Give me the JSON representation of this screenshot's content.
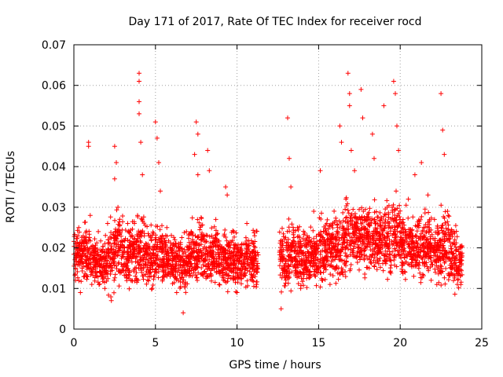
{
  "chart_data": {
    "type": "scatter",
    "title": "Day 171 of 2017, Rate Of TEC Index for receiver rocd",
    "xlabel": "GPS time / hours",
    "ylabel": "ROTI / TECUs",
    "xlim": [
      0,
      25
    ],
    "ylim": [
      0,
      0.07
    ],
    "x_ticks": [
      "0",
      "5",
      "10",
      "15",
      "20",
      "25"
    ],
    "y_ticks": [
      "0",
      "0.01",
      "0.02",
      "0.03",
      "0.04",
      "0.05",
      "0.06",
      "0.07"
    ],
    "grid": true,
    "marker": "+",
    "color": "#ff0000",
    "data_gap_hours": [
      11.3,
      12.6
    ],
    "series": [
      {
        "points": [
          [
            0.1,
            0.012
          ],
          [
            0.2,
            0.018
          ],
          [
            0.3,
            0.025
          ],
          [
            0.4,
            0.009
          ],
          [
            0.5,
            0.015
          ],
          [
            0.6,
            0.021
          ],
          [
            0.8,
            0.013
          ],
          [
            0.9,
            0.046
          ],
          [
            0.9,
            0.045
          ],
          [
            1.0,
            0.028
          ],
          [
            1.1,
            0.011
          ],
          [
            1.3,
            0.019
          ],
          [
            1.5,
            0.024
          ],
          [
            1.7,
            0.016
          ],
          [
            1.9,
            0.01
          ],
          [
            2.1,
            0.022
          ],
          [
            2.3,
            0.007
          ],
          [
            2.5,
            0.037
          ],
          [
            2.5,
            0.045
          ],
          [
            2.6,
            0.041
          ],
          [
            2.7,
            0.03
          ],
          [
            2.9,
            0.014
          ],
          [
            3.1,
            0.02
          ],
          [
            3.3,
            0.026
          ],
          [
            3.5,
            0.012
          ],
          [
            3.7,
            0.018
          ],
          [
            3.9,
            0.028
          ],
          [
            4.0,
            0.063
          ],
          [
            4.0,
            0.061
          ],
          [
            4.0,
            0.056
          ],
          [
            4.0,
            0.053
          ],
          [
            4.1,
            0.046
          ],
          [
            4.2,
            0.038
          ],
          [
            4.4,
            0.016
          ],
          [
            4.6,
            0.023
          ],
          [
            4.8,
            0.01
          ],
          [
            5.0,
            0.051
          ],
          [
            5.1,
            0.047
          ],
          [
            5.2,
            0.041
          ],
          [
            5.3,
            0.034
          ],
          [
            5.5,
            0.019
          ],
          [
            5.7,
            0.025
          ],
          [
            5.9,
            0.013
          ],
          [
            6.1,
            0.021
          ],
          [
            6.3,
            0.009
          ],
          [
            6.5,
            0.017
          ],
          [
            6.7,
            0.004
          ],
          [
            6.9,
            0.024
          ],
          [
            7.1,
            0.015
          ],
          [
            7.4,
            0.043
          ],
          [
            7.5,
            0.051
          ],
          [
            7.6,
            0.048
          ],
          [
            7.6,
            0.038
          ],
          [
            7.8,
            0.022
          ],
          [
            8.0,
            0.014
          ],
          [
            8.2,
            0.044
          ],
          [
            8.3,
            0.039
          ],
          [
            8.5,
            0.018
          ],
          [
            8.7,
            0.027
          ],
          [
            8.9,
            0.011
          ],
          [
            9.1,
            0.02
          ],
          [
            9.3,
            0.035
          ],
          [
            9.4,
            0.033
          ],
          [
            9.6,
            0.016
          ],
          [
            9.8,
            0.024
          ],
          [
            10.0,
            0.009
          ],
          [
            10.2,
            0.019
          ],
          [
            10.4,
            0.013
          ],
          [
            10.6,
            0.026
          ],
          [
            10.8,
            0.015
          ],
          [
            11.0,
            0.021
          ],
          [
            11.2,
            0.011
          ],
          [
            12.7,
            0.005
          ],
          [
            12.9,
            0.014
          ],
          [
            13.1,
            0.052
          ],
          [
            13.2,
            0.042
          ],
          [
            13.3,
            0.035
          ],
          [
            13.5,
            0.019
          ],
          [
            13.7,
            0.025
          ],
          [
            13.9,
            0.01
          ],
          [
            14.1,
            0.017
          ],
          [
            14.3,
            0.023
          ],
          [
            14.5,
            0.013
          ],
          [
            14.7,
            0.029
          ],
          [
            14.9,
            0.02
          ],
          [
            15.1,
            0.039
          ],
          [
            15.3,
            0.014
          ],
          [
            15.5,
            0.026
          ],
          [
            15.7,
            0.011
          ],
          [
            15.9,
            0.018
          ],
          [
            16.1,
            0.024
          ],
          [
            16.3,
            0.05
          ],
          [
            16.4,
            0.046
          ],
          [
            16.6,
            0.016
          ],
          [
            16.8,
            0.063
          ],
          [
            16.9,
            0.058
          ],
          [
            16.9,
            0.055
          ],
          [
            17.0,
            0.044
          ],
          [
            17.2,
            0.039
          ],
          [
            17.4,
            0.02
          ],
          [
            17.6,
            0.059
          ],
          [
            17.7,
            0.052
          ],
          [
            17.9,
            0.027
          ],
          [
            18.1,
            0.015
          ],
          [
            18.3,
            0.048
          ],
          [
            18.4,
            0.042
          ],
          [
            18.6,
            0.024
          ],
          [
            18.8,
            0.019
          ],
          [
            19.0,
            0.055
          ],
          [
            19.2,
            0.03
          ],
          [
            19.4,
            0.017
          ],
          [
            19.6,
            0.061
          ],
          [
            19.7,
            0.058
          ],
          [
            19.8,
            0.05
          ],
          [
            19.9,
            0.044
          ],
          [
            20.1,
            0.026
          ],
          [
            20.3,
            0.014
          ],
          [
            20.5,
            0.032
          ],
          [
            20.7,
            0.021
          ],
          [
            20.9,
            0.038
          ],
          [
            21.1,
            0.016
          ],
          [
            21.3,
            0.041
          ],
          [
            21.5,
            0.023
          ],
          [
            21.7,
            0.033
          ],
          [
            21.9,
            0.012
          ],
          [
            22.1,
            0.027
          ],
          [
            22.3,
            0.018
          ],
          [
            22.5,
            0.058
          ],
          [
            22.6,
            0.049
          ],
          [
            22.7,
            0.043
          ],
          [
            22.9,
            0.029
          ],
          [
            23.1,
            0.015
          ],
          [
            23.3,
            0.024
          ],
          [
            23.5,
            0.011
          ],
          [
            23.7,
            0.02
          ]
        ]
      }
    ],
    "density_bands": [
      [
        0.0,
        0.5,
        0.009,
        0.027
      ],
      [
        0.5,
        1.0,
        0.01,
        0.028
      ],
      [
        1.0,
        1.5,
        0.008,
        0.026
      ],
      [
        1.5,
        2.0,
        0.008,
        0.025
      ],
      [
        2.0,
        2.5,
        0.006,
        0.03
      ],
      [
        2.5,
        3.0,
        0.009,
        0.032
      ],
      [
        3.0,
        3.5,
        0.008,
        0.028
      ],
      [
        3.5,
        4.0,
        0.009,
        0.03
      ],
      [
        4.0,
        4.5,
        0.008,
        0.03
      ],
      [
        4.5,
        5.0,
        0.007,
        0.027
      ],
      [
        5.0,
        5.5,
        0.007,
        0.028
      ],
      [
        5.5,
        6.0,
        0.008,
        0.026
      ],
      [
        6.0,
        6.5,
        0.008,
        0.025
      ],
      [
        6.5,
        7.0,
        0.006,
        0.025
      ],
      [
        7.0,
        7.5,
        0.008,
        0.029
      ],
      [
        7.5,
        8.0,
        0.009,
        0.03
      ],
      [
        8.0,
        8.5,
        0.008,
        0.029
      ],
      [
        8.5,
        9.0,
        0.008,
        0.028
      ],
      [
        9.0,
        9.5,
        0.007,
        0.027
      ],
      [
        9.5,
        10.0,
        0.008,
        0.026
      ],
      [
        10.0,
        10.5,
        0.008,
        0.025
      ],
      [
        10.5,
        11.0,
        0.008,
        0.026
      ],
      [
        11.0,
        11.3,
        0.008,
        0.026
      ],
      [
        12.6,
        13.0,
        0.006,
        0.028
      ],
      [
        13.0,
        13.5,
        0.008,
        0.03
      ],
      [
        13.5,
        14.0,
        0.008,
        0.028
      ],
      [
        14.0,
        14.5,
        0.008,
        0.027
      ],
      [
        14.5,
        15.0,
        0.008,
        0.027
      ],
      [
        15.0,
        15.5,
        0.008,
        0.03
      ],
      [
        15.5,
        16.0,
        0.009,
        0.031
      ],
      [
        16.0,
        16.5,
        0.009,
        0.031
      ],
      [
        16.5,
        17.0,
        0.009,
        0.036
      ],
      [
        17.0,
        17.5,
        0.011,
        0.035
      ],
      [
        17.5,
        18.0,
        0.011,
        0.034
      ],
      [
        18.0,
        18.5,
        0.011,
        0.034
      ],
      [
        18.5,
        19.0,
        0.01,
        0.033
      ],
      [
        19.0,
        19.5,
        0.01,
        0.034
      ],
      [
        19.5,
        20.0,
        0.01,
        0.036
      ],
      [
        20.0,
        20.5,
        0.009,
        0.032
      ],
      [
        20.5,
        21.0,
        0.01,
        0.03
      ],
      [
        21.0,
        21.5,
        0.01,
        0.031
      ],
      [
        21.5,
        22.0,
        0.01,
        0.031
      ],
      [
        22.0,
        22.5,
        0.009,
        0.03
      ],
      [
        22.5,
        23.0,
        0.009,
        0.032
      ],
      [
        23.0,
        23.5,
        0.008,
        0.028
      ],
      [
        23.5,
        23.8,
        0.008,
        0.024
      ]
    ]
  }
}
